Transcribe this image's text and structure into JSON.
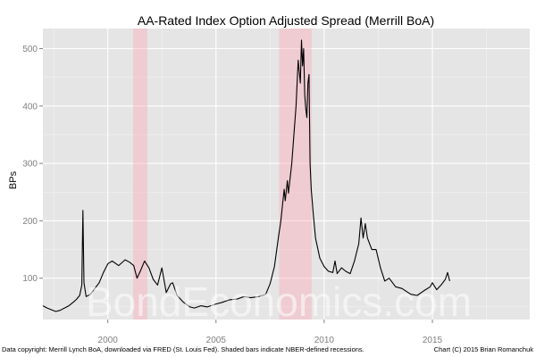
{
  "chart_data": {
    "type": "line",
    "title": "AA-Rated Index Option Adjusted Spread (Merrill BoA)",
    "xlabel": "",
    "ylabel": "BPs",
    "xlim": [
      1997.0,
      2019.5
    ],
    "ylim": [
      28,
      535
    ],
    "x_ticks": [
      2000,
      2005,
      2010,
      2015
    ],
    "y_ticks": [
      100,
      200,
      300,
      400,
      500
    ],
    "recessions": [
      {
        "start": 2001.17,
        "end": 2001.83
      },
      {
        "start": 2007.92,
        "end": 2009.42
      }
    ],
    "series": [
      {
        "name": "AA OAS",
        "color": "#000000",
        "x": [
          1997.0,
          1997.2,
          1997.4,
          1997.6,
          1997.8,
          1998.0,
          1998.2,
          1998.4,
          1998.55,
          1998.7,
          1998.8,
          1998.85,
          1998.9,
          1999.0,
          1999.2,
          1999.4,
          1999.6,
          1999.8,
          2000.0,
          2000.2,
          2000.5,
          2000.8,
          2001.0,
          2001.2,
          2001.35,
          2001.5,
          2001.7,
          2001.9,
          2002.1,
          2002.3,
          2002.5,
          2002.7,
          2002.9,
          2003.0,
          2003.2,
          2003.5,
          2003.8,
          2004.0,
          2004.3,
          2004.6,
          2005.0,
          2005.3,
          2005.6,
          2006.0,
          2006.3,
          2006.6,
          2007.0,
          2007.3,
          2007.5,
          2007.7,
          2007.9,
          2008.0,
          2008.15,
          2008.2,
          2008.3,
          2008.35,
          2008.5,
          2008.7,
          2008.8,
          2008.9,
          2008.95,
          2009.0,
          2009.05,
          2009.1,
          2009.15,
          2009.2,
          2009.25,
          2009.3,
          2009.35,
          2009.4,
          2009.5,
          2009.6,
          2009.8,
          2010.0,
          2010.2,
          2010.4,
          2010.5,
          2010.6,
          2010.8,
          2011.0,
          2011.2,
          2011.4,
          2011.6,
          2011.7,
          2011.8,
          2011.9,
          2012.0,
          2012.2,
          2012.4,
          2012.6,
          2012.8,
          2013.0,
          2013.3,
          2013.6,
          2014.0,
          2014.3,
          2014.6,
          2014.9,
          2015.0,
          2015.2,
          2015.4,
          2015.6,
          2015.7,
          2015.8
        ],
        "y": [
          52,
          48,
          45,
          42,
          44,
          48,
          52,
          58,
          63,
          70,
          88,
          218,
          92,
          68,
          72,
          82,
          92,
          110,
          125,
          130,
          122,
          132,
          128,
          122,
          100,
          112,
          130,
          118,
          98,
          88,
          118,
          75,
          90,
          92,
          70,
          58,
          50,
          48,
          52,
          50,
          55,
          58,
          62,
          64,
          68,
          66,
          68,
          72,
          90,
          120,
          175,
          200,
          255,
          235,
          270,
          248,
          300,
          400,
          480,
          440,
          515,
          470,
          500,
          420,
          395,
          380,
          440,
          455,
          300,
          255,
          210,
          170,
          135,
          120,
          112,
          110,
          130,
          108,
          118,
          112,
          108,
          130,
          160,
          205,
          170,
          195,
          170,
          150,
          150,
          118,
          95,
          100,
          85,
          82,
          72,
          70,
          78,
          85,
          92,
          80,
          88,
          98,
          110,
          95
        ]
      }
    ],
    "footer_left": "Data copyright: Merrill Lynch BoA, downloaded via FRED (St. Louis Fed). Shaded bars indicate NBER-defined recessions.",
    "footer_right": "Chart (C) 2015 Brian Romanchuk",
    "watermark": "BondEconomics.com"
  }
}
